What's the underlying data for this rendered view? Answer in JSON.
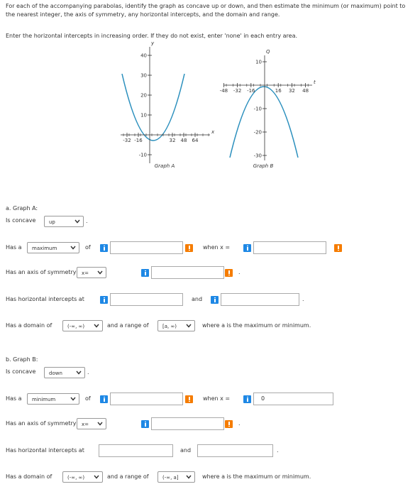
{
  "instructions": {
    "line1": "For each of the accompanying parabolas, identify the graph as concave up or down, and then estimate the minimum (or maximum) point to the nearest integer, the axis of symmetry, any horizontal intercepts, and the domain and range.",
    "line2": "Enter the horizontal intercepts in increasing order. If they do not exist, enter 'none' in each entry area."
  },
  "graphs": [
    {
      "caption": "Graph A",
      "y_label": "y",
      "x_label": "x",
      "yticks": [
        40,
        30,
        20,
        10,
        -10
      ],
      "xticks": [
        -32,
        -16,
        32,
        48,
        64
      ]
    },
    {
      "caption": "Graph B",
      "y_label": "Q",
      "x_label": "t",
      "yticks": [
        10,
        -10,
        -20,
        -30
      ],
      "xticks": [
        -48,
        -32,
        -16,
        16,
        32,
        48
      ]
    }
  ],
  "parts": [
    {
      "heading": "a. Graph A:",
      "concave_label": "Is concave",
      "concave": "up",
      "period": ".",
      "has_a": "Has a",
      "extremum": "maximum",
      "of": "of",
      "when_x": "when x =",
      "axis_label": "Has an axis of symmetry of",
      "axis_select": "x=",
      "intercepts_label": "Has horizontal intercepts at",
      "and": "and",
      "domain_label": "Has a domain of",
      "domain": "(-∞, ∞)",
      "range_label": "and a range of",
      "range": "[a, ∞)",
      "where": "where a is the maximum or minimum."
    },
    {
      "heading": "b. Graph B:",
      "concave_label": "Is concave",
      "concave": "down",
      "period": ".",
      "has_a": "Has a",
      "extremum": "minimum",
      "of": "of",
      "when_x": "when x =",
      "when_x_value": "0",
      "axis_label": "Has an axis of symmetry of",
      "axis_select": "x=",
      "intercepts_label": "Has horizontal intercepts at",
      "and": "and",
      "domain_label": "Has a domain of",
      "domain": "(-∞, ∞)",
      "range_label": "and a range of",
      "range": "(-∞, a]",
      "where": "where a is the maximum or minimum."
    }
  ]
}
